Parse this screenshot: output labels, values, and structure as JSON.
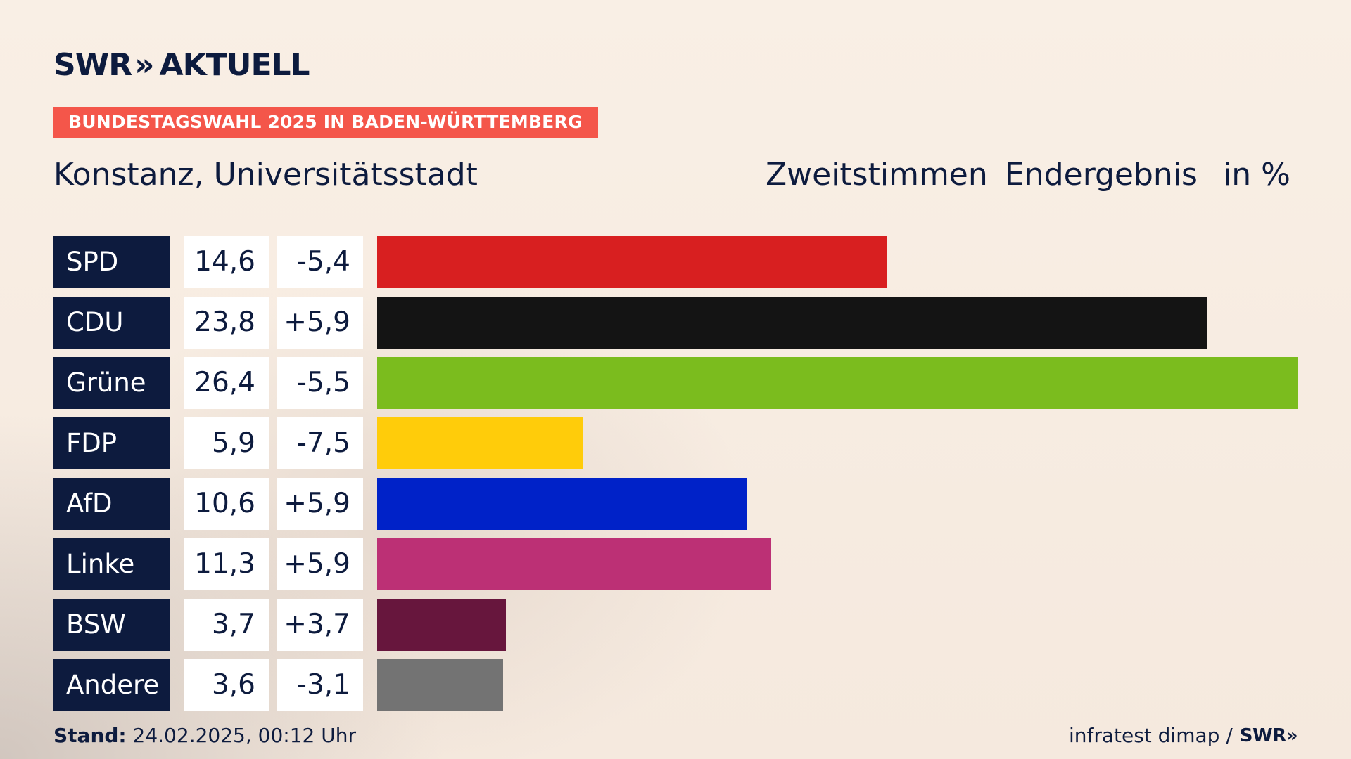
{
  "brand": {
    "logo_left": "SWR",
    "logo_chevrons": "»",
    "logo_right": "AKTUELL"
  },
  "header": {
    "badge": "BUNDESTAGSWAHL 2025 IN BADEN-WÜRTTEMBERG",
    "region": "Konstanz, Universitätsstadt",
    "vote_type": "Zweitstimmen",
    "result_state": "Endergebnis",
    "unit": "in %"
  },
  "chart_data": {
    "type": "bar",
    "orientation": "horizontal",
    "categories": [
      "SPD",
      "CDU",
      "Grüne",
      "FDP",
      "AfD",
      "Linke",
      "BSW",
      "Andere"
    ],
    "values": [
      14.6,
      23.8,
      26.4,
      5.9,
      10.6,
      11.3,
      3.7,
      3.6
    ],
    "value_labels": [
      "14,6",
      "23,8",
      "26,4",
      "5,9",
      "10,6",
      "11,3",
      "3,7",
      "3,6"
    ],
    "diff_labels": [
      "-5,4",
      "+5,9",
      "-5,5",
      "-7,5",
      "+5,9",
      "+5,9",
      "+3,7",
      "-3,1"
    ],
    "colors": [
      "#d81f20",
      "#141414",
      "#7bbc1e",
      "#ffcc0a",
      "#0022c8",
      "#bc3075",
      "#67163d",
      "#737373"
    ],
    "xlim": [
      0,
      26.4
    ]
  },
  "footer": {
    "stand_label": "Stand:",
    "stand_value": "24.02.2025, 00:12 Uhr",
    "source": "infratest dimap /",
    "source_logo": "SWR",
    "source_logo_chevrons": "»"
  }
}
